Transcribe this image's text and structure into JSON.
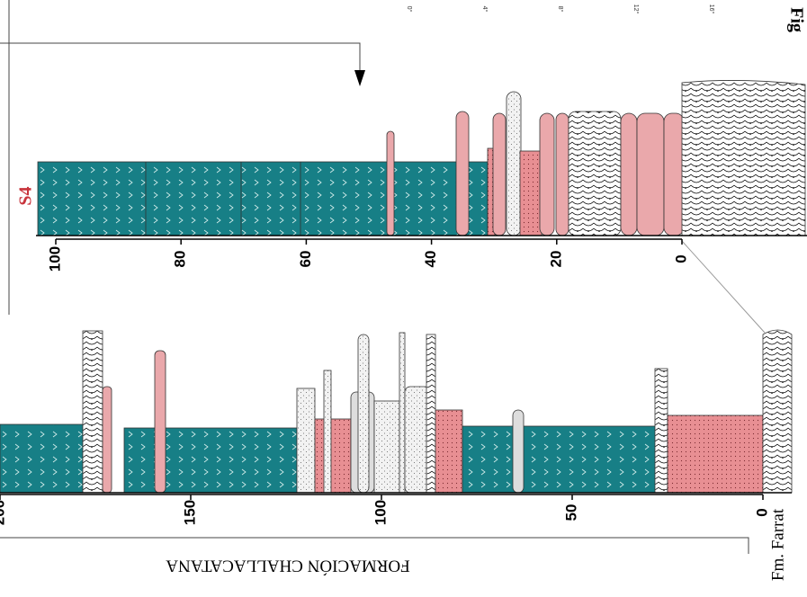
{
  "figure_label": "Fig",
  "degree_scale": [
    "0°",
    "4°",
    "8°",
    "12°",
    "16°"
  ],
  "section_label": "S4",
  "upper_column": {
    "ticks": [
      100,
      80,
      60,
      40,
      20,
      0
    ]
  },
  "lower_column": {
    "ticks": [
      200,
      150,
      100,
      50,
      0
    ]
  },
  "formation": "FORMACIÓN CHALLACATANA",
  "base_formation": "Fm. Farrat"
}
